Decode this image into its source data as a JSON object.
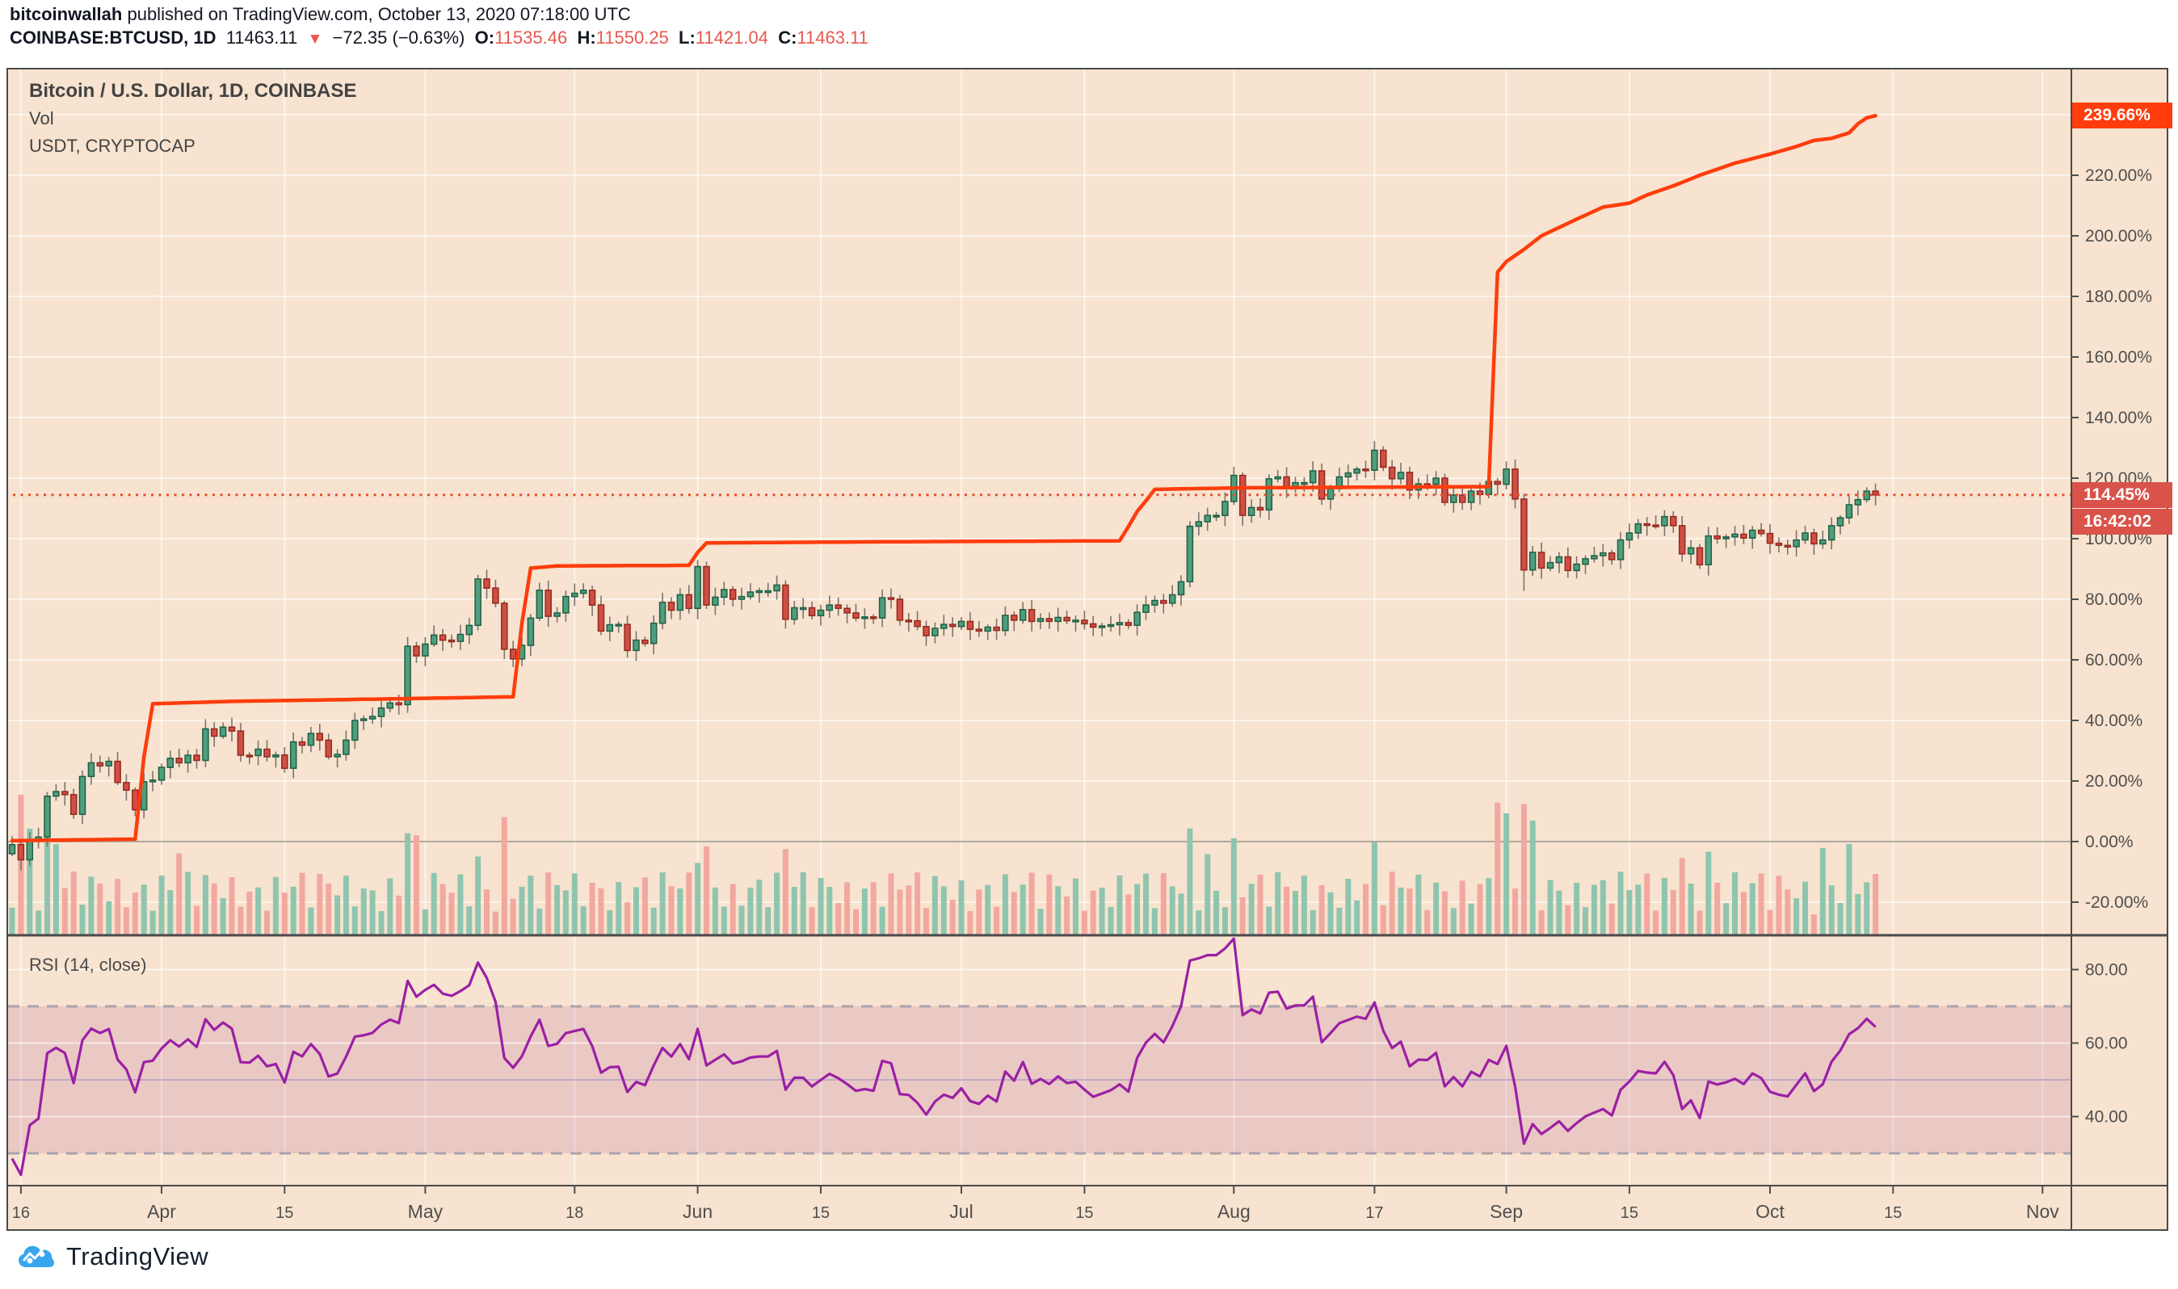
{
  "header": {
    "byline_user": "bitcoinwallah",
    "byline_rest": " published on TradingView.com, October 13, 2020 07:18:00 UTC",
    "symbol": "COINBASE:BTCUSD, 1D",
    "last_price": "11463.11",
    "arrow": "▼",
    "change": "−72.35 (−0.63%)",
    "o_label": "O:",
    "o_value": "11535.46",
    "h_label": "H:",
    "h_value": "11550.25",
    "l_label": "L:",
    "l_value": "11421.04",
    "c_label": "C:",
    "c_value": "11463.11"
  },
  "legend": {
    "title": "Bitcoin / U.S. Dollar, 1D, COINBASE",
    "vol": "Vol",
    "overlay": "USDT, CRYPTOCAP"
  },
  "rsi_label": "RSI (14, close)",
  "footer": {
    "brand": "TradingView"
  },
  "price_axis": {
    "tick_values": [
      220,
      200,
      180,
      160,
      140,
      120,
      100,
      80,
      60,
      40,
      20,
      0,
      -20
    ],
    "tick_labels": [
      "220.00%",
      "200.00%",
      "180.00%",
      "160.00%",
      "140.00%",
      "120.00%",
      "100.00%",
      "80.00%",
      "60.00%",
      "40.00%",
      "20.00%",
      "0.00%",
      "-20.00%"
    ],
    "usdt_last_label": "239.66%",
    "close_label": "114.45%",
    "countdown": "16:42:02"
  },
  "rsi_axis": {
    "tick_values": [
      80,
      60,
      40
    ],
    "tick_labels": [
      "80.00",
      "60.00",
      "40.00"
    ]
  },
  "time_axis": {
    "ticks": [
      {
        "i": 1,
        "label": "16",
        "month": false
      },
      {
        "i": 17,
        "label": "Apr",
        "month": true
      },
      {
        "i": 31,
        "label": "15",
        "month": false
      },
      {
        "i": 47,
        "label": "May",
        "month": true
      },
      {
        "i": 64,
        "label": "18",
        "month": false
      },
      {
        "i": 78,
        "label": "Jun",
        "month": true
      },
      {
        "i": 92,
        "label": "15",
        "month": false
      },
      {
        "i": 108,
        "label": "Jul",
        "month": true
      },
      {
        "i": 122,
        "label": "15",
        "month": false
      },
      {
        "i": 139,
        "label": "Aug",
        "month": true
      },
      {
        "i": 155,
        "label": "17",
        "month": false
      },
      {
        "i": 170,
        "label": "Sep",
        "month": true
      },
      {
        "i": 184,
        "label": "15",
        "month": false
      },
      {
        "i": 200,
        "label": "Oct",
        "month": true
      },
      {
        "i": 214,
        "label": "15",
        "month": false
      },
      {
        "i": 231,
        "label": "Nov",
        "month": true
      }
    ]
  },
  "colors": {
    "bg": "#f7e3cf",
    "grid": "rgba(255,255,255,0.6)",
    "zero_line": "#b0a89c",
    "border": "#4a4a4c",
    "up_body": "#4f9e7e",
    "up_border": "#1e5f45",
    "down_body": "#cf4f45",
    "down_border": "#94291f",
    "wick": "#7b756e",
    "vol_up": "#8fc5af",
    "vol_down": "#f2a89f",
    "usdt_line": "#ff3c0c",
    "dotted_line": "#ea4f2c",
    "label_orange": "#ff3c0c",
    "label_red": "#d9534a",
    "axis_text": "#4f4f4f",
    "rsi_line": "#9b1fa5",
    "rsi_band_fill": "rgba(171,64,134,0.16)",
    "rsi_band_border": "#aba3ad",
    "rsi_mid_line": "rgba(140,130,200,0.45)",
    "logo_blue": "#37a6ef"
  },
  "chart_data": {
    "type": "candlestick+line+volume+rsi",
    "title": "Bitcoin / U.S. Dollar, 1D, COINBASE with USDT, CRYPTOCAP overlay (percentage scale)",
    "x_start_date": "2020-03-15",
    "x_end_date": "2020-10-13",
    "y_axis": {
      "units": "percent change",
      "min": -20,
      "max": 255,
      "grid_step": 20
    },
    "btc_close_pct": [
      -1.0,
      -6.0,
      0.5,
      1.5,
      15.0,
      16.5,
      15.5,
      9.0,
      21.5,
      26.0,
      25.0,
      26.5,
      19.5,
      17.0,
      10.5,
      19.8,
      20.3,
      24.5,
      27.5,
      26.0,
      28.5,
      26.8,
      37.2,
      34.8,
      37.8,
      36.5,
      28.5,
      28.4,
      30.5,
      28.0,
      28.6,
      24.2,
      32.9,
      31.8,
      35.7,
      33.5,
      28.0,
      28.8,
      33.5,
      40.0,
      40.5,
      41.3,
      44.1,
      45.8,
      45.2,
      64.5,
      61.3,
      65.2,
      68.2,
      66.5,
      66.1,
      68.4,
      71.4,
      86.7,
      83.7,
      78.7,
      63.5,
      60.3,
      64.8,
      73.8,
      83.0,
      74.4,
      75.5,
      80.9,
      82.0,
      83.0,
      78.1,
      69.5,
      71.6,
      71.7,
      63.1,
      66.5,
      65.4,
      72.1,
      79.0,
      76.4,
      81.5,
      77.0,
      90.8,
      78.1,
      80.7,
      83.2,
      80.0,
      80.9,
      82.4,
      82.8,
      82.8,
      84.7,
      73.4,
      77.2,
      77.2,
      74.6,
      76.4,
      78.1,
      77.0,
      75.5,
      73.8,
      74.2,
      73.8,
      80.5,
      80.0,
      73.1,
      72.9,
      71.0,
      68.0,
      70.4,
      71.7,
      71.0,
      72.7,
      70.1,
      69.5,
      70.8,
      69.7,
      74.7,
      73.1,
      76.6,
      72.7,
      73.6,
      72.7,
      74.0,
      72.9,
      73.1,
      71.9,
      70.8,
      71.2,
      71.6,
      72.3,
      71.4,
      75.7,
      78.1,
      79.6,
      78.7,
      81.5,
      85.8,
      104.1,
      105.6,
      107.7,
      107.7,
      112.3,
      120.9,
      107.7,
      110.3,
      109.5,
      119.8,
      120.4,
      117.0,
      118.5,
      118.5,
      122.4,
      113.1,
      116.5,
      120.4,
      121.7,
      123.0,
      122.6,
      129.2,
      123.6,
      119.8,
      121.9,
      116.1,
      118.1,
      118.0,
      120.0,
      112.0,
      114.4,
      112.0,
      115.7,
      114.6,
      118.9,
      118.0,
      123.0,
      113.1,
      89.7,
      95.5,
      90.3,
      92.1,
      94.0,
      89.5,
      91.6,
      93.4,
      94.4,
      95.3,
      93.1,
      99.6,
      101.9,
      104.9,
      104.5,
      104.3,
      107.3,
      104.3,
      95.0,
      97.0,
      91.4,
      100.9,
      100.0,
      100.6,
      101.5,
      100.2,
      102.8,
      101.7,
      98.5,
      97.8,
      97.4,
      99.6,
      101.9,
      98.3,
      99.6,
      104.3,
      106.9,
      111.2,
      112.9,
      115.7,
      114.45
    ],
    "btc_last_close_pct": 114.45,
    "usdt_pct_breakpoints": [
      [
        0,
        0.3
      ],
      [
        14,
        0.8
      ],
      [
        15,
        28
      ],
      [
        16,
        45.5
      ],
      [
        25,
        46.3
      ],
      [
        45,
        47.2
      ],
      [
        57,
        47.8
      ],
      [
        58,
        72
      ],
      [
        59,
        90.3
      ],
      [
        62,
        91
      ],
      [
        77,
        91.2
      ],
      [
        78,
        95.5
      ],
      [
        79,
        98.6
      ],
      [
        100,
        99
      ],
      [
        126,
        99.3
      ],
      [
        127,
        104
      ],
      [
        128,
        109
      ],
      [
        129,
        112.5
      ],
      [
        130,
        116.3
      ],
      [
        140,
        116.8
      ],
      [
        168,
        117.2
      ],
      [
        169,
        188
      ],
      [
        170,
        191.5
      ],
      [
        172,
        195.5
      ],
      [
        174,
        200
      ],
      [
        178,
        205.5
      ],
      [
        181,
        209.5
      ],
      [
        184,
        210.8
      ],
      [
        186,
        213.5
      ],
      [
        189,
        216.5
      ],
      [
        192,
        220
      ],
      [
        196,
        224
      ],
      [
        200,
        227
      ],
      [
        203,
        229.5
      ],
      [
        205,
        231.5
      ],
      [
        207,
        232.2
      ],
      [
        209,
        234
      ],
      [
        210,
        237
      ],
      [
        211,
        239
      ],
      [
        212,
        239.66
      ]
    ],
    "usdt_last_pct": 239.66,
    "volume_spikes": {
      "1": 100,
      "2": 55,
      "4": 60,
      "5": 45,
      "19": 35,
      "45": 55,
      "46": 40,
      "53": 30,
      "56": 65,
      "78": 45,
      "79": 35,
      "88": 40,
      "134": 50,
      "136": 35,
      "139": 40,
      "155": 35,
      "169": 105,
      "170": 60,
      "172": 85,
      "173": 55,
      "190": 45,
      "193": 35,
      "206": 40,
      "209": 30
    },
    "rsi": {
      "period": 14,
      "source": "close",
      "band": [
        30,
        70
      ],
      "seed_avg_gain": 0.6,
      "seed_avg_loss": 1.5
    }
  }
}
